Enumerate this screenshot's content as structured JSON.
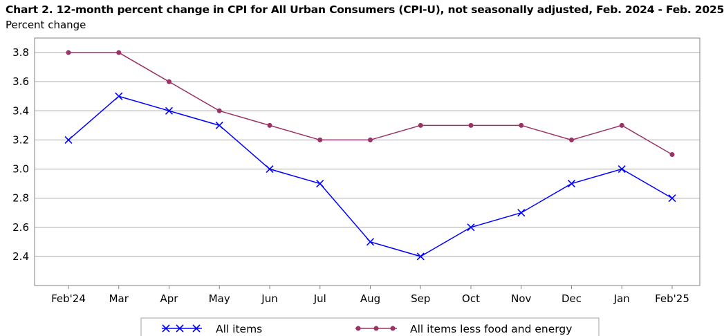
{
  "chart_data": {
    "type": "line",
    "title": "Chart 2. 12-month percent change in CPI for All Urban Consumers (CPI-U), not seasonally adjusted, Feb. 2024 - Feb. 2025",
    "ylabel": "Percent change",
    "xlabel": "",
    "categories": [
      "Feb'24",
      "Mar",
      "Apr",
      "May",
      "Jun",
      "Jul",
      "Aug",
      "Sep",
      "Oct",
      "Nov",
      "Dec",
      "Jan",
      "Feb'25"
    ],
    "ylim": [
      2.2,
      3.9
    ],
    "yticks": [
      "3.8",
      "3.6",
      "3.4",
      "3.2",
      "3.0",
      "2.8",
      "2.6",
      "2.4"
    ],
    "grid": true,
    "legend_position": "bottom",
    "series": [
      {
        "name": "All items",
        "color": "#0000ff",
        "marker": "x",
        "values": [
          3.2,
          3.5,
          3.4,
          3.3,
          3.0,
          2.9,
          2.5,
          2.4,
          2.6,
          2.7,
          2.9,
          3.0,
          2.8
        ]
      },
      {
        "name": "All items less food and energy",
        "color": "#993366",
        "marker": "circle",
        "values": [
          3.8,
          3.8,
          3.6,
          3.4,
          3.3,
          3.2,
          3.2,
          3.3,
          3.3,
          3.3,
          3.2,
          3.3,
          3.1
        ]
      }
    ]
  }
}
